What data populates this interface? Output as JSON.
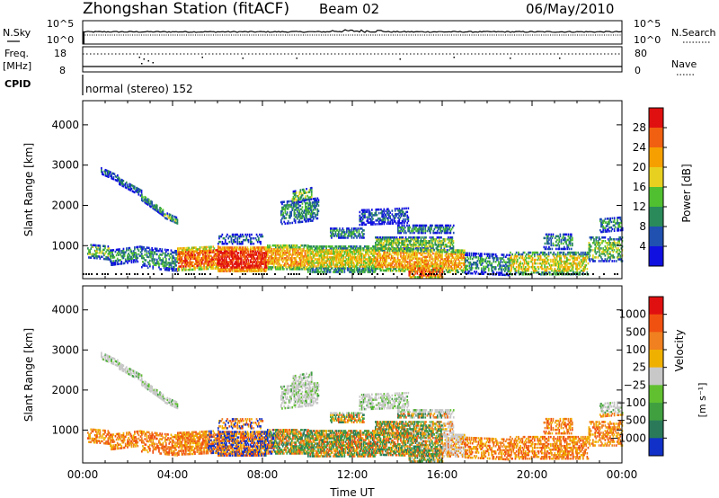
{
  "header": {
    "station": "Zhongshan Station (fitACF)",
    "beam": "Beam 02",
    "date": "06/May/2010"
  },
  "top_panels": {
    "nsky_label": "N.Sky",
    "nsky_ticks": [
      "10^5",
      "10^0"
    ],
    "nsearch_label": "N.Search",
    "nsearch_ticks": [
      "10^5",
      "10^0"
    ],
    "freq_label": "Freq.",
    "freq_unit": "[MHz]",
    "freq_ticks": [
      "18",
      "8"
    ],
    "nave_label": "Nave",
    "nave_ticks": [
      "80",
      "0"
    ],
    "cpid_label": "CPID",
    "cpid_text": "normal (stereo) 152"
  },
  "chart_data": [
    {
      "type": "heatmap",
      "panel": "power",
      "ylabel": "Slant Range [km]",
      "xlabel": "",
      "ylim": [
        180,
        4600
      ],
      "xlim": [
        0,
        24
      ],
      "y_ticks": [
        "1000",
        "2000",
        "3000",
        "4000"
      ],
      "x_ticks": [
        "00:00",
        "04:00",
        "08:00",
        "12:00",
        "16:00",
        "20:00",
        "00:00"
      ],
      "colorbar": {
        "label": "Power [dB]",
        "ticks": [
          "4",
          "8",
          "12",
          "16",
          "20",
          "24",
          "28"
        ],
        "colors": [
          "#1010e0",
          "#2050b0",
          "#2a8a5a",
          "#50c030",
          "#e8d020",
          "#f5a000",
          "#f06010",
          "#e01010"
        ]
      }
    },
    {
      "type": "heatmap",
      "panel": "velocity",
      "ylabel": "Slant Range [km]",
      "xlabel": "Time UT",
      "ylim": [
        180,
        4600
      ],
      "xlim": [
        0,
        24
      ],
      "y_ticks": [
        "1000",
        "2000",
        "3000",
        "4000"
      ],
      "x_ticks": [
        "00:00",
        "04:00",
        "08:00",
        "12:00",
        "16:00",
        "20:00",
        "00:00"
      ],
      "colorbar": {
        "label": "Velocity",
        "unit": "[m s⁻¹]",
        "ticks": [
          "1000",
          "500",
          "100",
          "25",
          "−25",
          "−100",
          "−500",
          "−1000"
        ],
        "colors": [
          "#1030c8",
          "#2a7a5a",
          "#40a040",
          "#60c030",
          "#c8c8c8",
          "#f0b000",
          "#f08020",
          "#f05010",
          "#e01010"
        ]
      }
    }
  ]
}
